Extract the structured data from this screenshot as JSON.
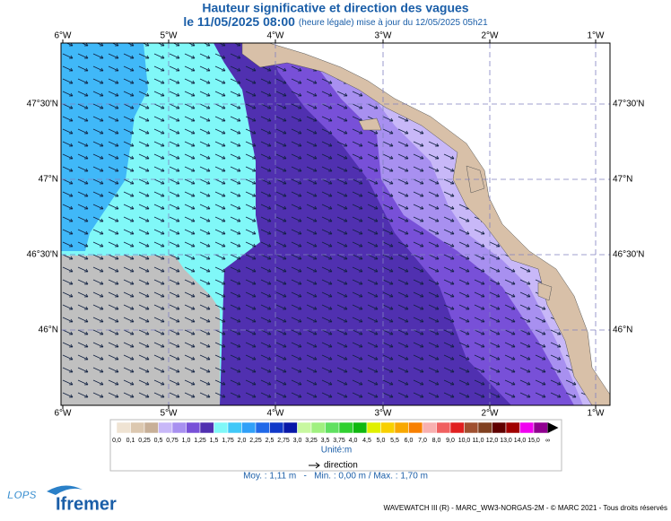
{
  "header": {
    "title": "Hauteur significative et direction des vagues",
    "date": "le 11/05/2025 08:00",
    "date_note": "(heure légale) mise à jour du 12/05/2025 05h21"
  },
  "map": {
    "lon_labels": [
      "6°W",
      "5°W",
      "4°W",
      "3°W",
      "2°W",
      "1°W"
    ],
    "lat_labels": [
      "47°30'N",
      "47°N",
      "46°30'N",
      "46°N"
    ]
  },
  "legend": {
    "labels": [
      "0,0",
      "0,1",
      "0,25",
      "0,5",
      "0,75",
      "1,0",
      "1,25",
      "1,5",
      "1,75",
      "2,0",
      "2,25",
      "2,5",
      "2,75",
      "3,0",
      "3,25",
      "3,5",
      "3,75",
      "4,0",
      "4,5",
      "5,0",
      "5,5",
      "6,0",
      "7,0",
      "8,0",
      "9,0",
      "10,0",
      "11,0",
      "12,0",
      "13,0",
      "14,0",
      "15,0",
      "∞"
    ],
    "colors": [
      "#efe3d3",
      "#dcc8b0",
      "#c8b098",
      "#c8b8f8",
      "#a890f0",
      "#7850d8",
      "#5030b0",
      "#80f8f8",
      "#40c8f8",
      "#30a0f8",
      "#2068e8",
      "#1038c8",
      "#0818a8",
      "#c8f8a0",
      "#a0f080",
      "#60e060",
      "#30d030",
      "#10b810",
      "#e0f000",
      "#f8d000",
      "#f8a800",
      "#f88000",
      "#f8b0b0",
      "#f06060",
      "#e02020",
      "#a05030",
      "#804020",
      "#600000",
      "#a00000",
      "#f000f0",
      "#900090"
    ],
    "unit": "Unité:m",
    "direction": "direction",
    "stats": "Moy. : 1,11 m   -   Min. : 0,00 m / Max. : 1,70 m"
  },
  "footer": {
    "credits": "WAVEWATCH III (R) - MARC_WW3-NORGAS-2M - © MARC 2021 - Tous droits réservés",
    "logo_lops": "LOPS",
    "logo_ifremer": "Ifremer"
  }
}
